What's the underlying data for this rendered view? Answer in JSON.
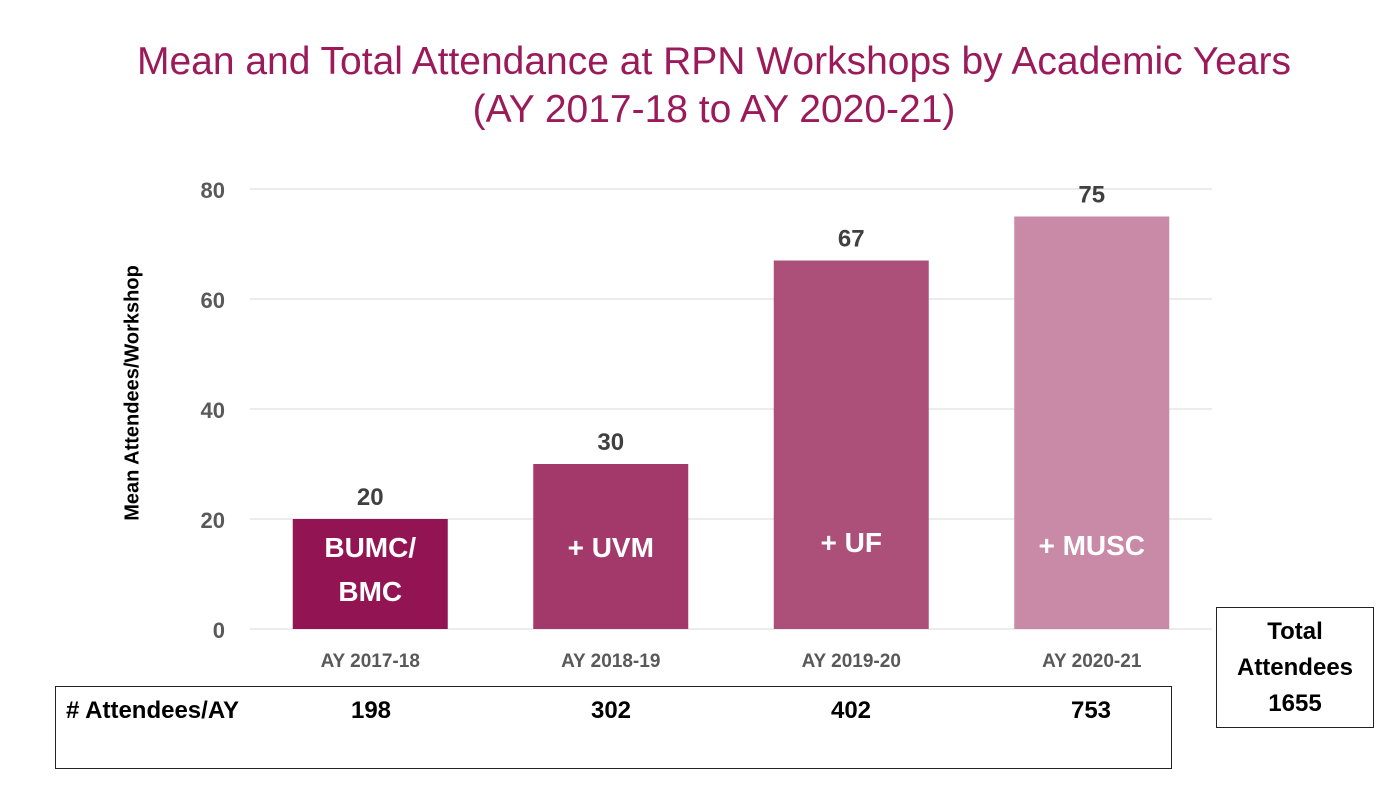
{
  "chart_data": {
    "type": "bar",
    "title": "Mean and Total Attendance at RPN Workshops by Academic Years",
    "subtitle": "(AY 2017-18 to AY 2020-21)",
    "xlabel": "",
    "ylabel": "Mean Attendees/Workshop",
    "ylim": [
      0,
      80
    ],
    "yticks": [
      0,
      20,
      40,
      60,
      80
    ],
    "grid": true,
    "categories": [
      "AY 2017-18",
      "AY 2018-19",
      "AY 2019-20",
      "AY 2020-21"
    ],
    "values": [
      20,
      30,
      67,
      75
    ],
    "data_labels": [
      "20",
      "30",
      "67",
      "75"
    ],
    "bar_annotations": [
      [
        "BUMC/",
        "BMC"
      ],
      [
        "+ UVM"
      ],
      [
        "+ UF"
      ],
      [
        "+ MUSC"
      ]
    ],
    "colors": [
      "#921452",
      "#a3396a",
      "#ac5079",
      "#c98aa7"
    ]
  },
  "attendees_row": {
    "label": "# Attendees/AY",
    "values": [
      "198",
      "302",
      "402",
      "753"
    ]
  },
  "total": {
    "line1": "Total",
    "line2": "Attendees",
    "value": "1655"
  },
  "colors": {
    "title": "#9b1b5a",
    "grid": "#d9d9d9",
    "tick": "#595959"
  }
}
